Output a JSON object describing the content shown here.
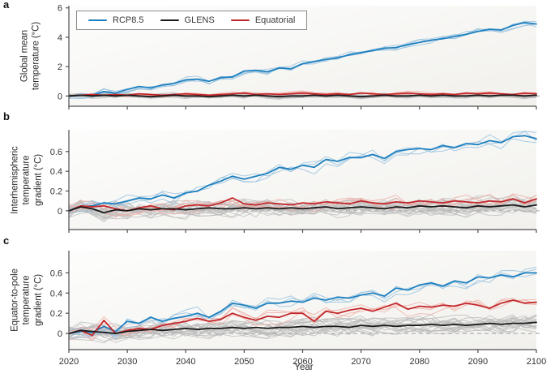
{
  "figure": {
    "xlabel": "Year",
    "legend": [
      {
        "label": "RCP8.5",
        "color": "#1e80c0"
      },
      {
        "label": "GLENS",
        "color": "#1a1a1a"
      },
      {
        "label": "Equatorial",
        "color": "#c4272b"
      }
    ],
    "panels": [
      {
        "letter": "a",
        "ylabel_lines": [
          "Global mean",
          "temperature (°C)"
        ]
      },
      {
        "letter": "b",
        "ylabel_lines": [
          "Interhemispheric",
          "temperature",
          "gradient (°C)"
        ]
      },
      {
        "letter": "c",
        "ylabel_lines": [
          "Equator-to-pole",
          "temperature",
          "gradient (°C)"
        ]
      }
    ],
    "colors": {
      "rcp85": "#1e80c0",
      "rcp85_ensemble": "#92bedd",
      "glens": "#1a1a1a",
      "glens_ensemble": "#bcbcbc",
      "equatorial": "#c4272b",
      "equatorial_ensemble": "#efa9a1",
      "axis": "#4d4d4d",
      "zero_dash": "#a0a0a0",
      "plot_bg_top": "#fdfdfc",
      "plot_bg_bottom": "#f1f0ec"
    }
  },
  "chart_data": [
    {
      "type": "line",
      "panel": "a",
      "ylabel": "Global mean temperature (°C)",
      "xlabel": "Year",
      "ylim": [
        -0.7,
        6.15
      ],
      "yticks": [
        0,
        2,
        4,
        6
      ],
      "xticks": [
        2020,
        2030,
        2040,
        2050,
        2060,
        2070,
        2080,
        2090,
        2100
      ],
      "x": [
        2020,
        2022,
        2024,
        2026,
        2028,
        2030,
        2032,
        2034,
        2036,
        2038,
        2040,
        2042,
        2044,
        2046,
        2048,
        2050,
        2052,
        2054,
        2056,
        2058,
        2060,
        2062,
        2064,
        2066,
        2068,
        2070,
        2072,
        2074,
        2076,
        2078,
        2080,
        2082,
        2084,
        2086,
        2088,
        2090,
        2092,
        2094,
        2096,
        2098,
        2100
      ],
      "series": [
        {
          "name": "RCP8.5",
          "color": "#1e80c0",
          "values": [
            0,
            0.05,
            0.05,
            0.3,
            0.2,
            0.45,
            0.65,
            0.55,
            0.75,
            0.85,
            1.1,
            1.15,
            1.0,
            1.25,
            1.3,
            1.7,
            1.75,
            1.65,
            1.9,
            1.85,
            2.2,
            2.35,
            2.5,
            2.6,
            2.8,
            2.95,
            3.1,
            3.25,
            3.3,
            3.5,
            3.65,
            3.8,
            3.9,
            4.05,
            4.2,
            4.4,
            4.55,
            4.5,
            4.8,
            5.0,
            4.9
          ]
        },
        {
          "name": "GLENS",
          "color": "#1a1a1a",
          "values": [
            0,
            0.05,
            0,
            0.05,
            0,
            0.05,
            0,
            -0.05,
            0,
            0.05,
            0,
            0,
            -0.05,
            0,
            0.05,
            0,
            0.05,
            0,
            -0.05,
            0,
            0,
            0.05,
            0,
            0.05,
            0,
            -0.05,
            0,
            0.05,
            0,
            0,
            0.05,
            0,
            0.05,
            0,
            0,
            0.05,
            0,
            0.05,
            0.05,
            0,
            0.05
          ]
        },
        {
          "name": "Equatorial",
          "color": "#c4272b",
          "values": [
            0,
            0.05,
            0.1,
            0.05,
            0.1,
            0.05,
            0.15,
            0.1,
            0.05,
            0.1,
            0.15,
            0.1,
            0.05,
            0.1,
            0.15,
            0.2,
            0.1,
            0.15,
            0.1,
            0.15,
            0.2,
            0.15,
            0.1,
            0.15,
            0.1,
            0.2,
            0.15,
            0.1,
            0.15,
            0.2,
            0.15,
            0.1,
            0.15,
            0.1,
            0.2,
            0.15,
            0.2,
            0.15,
            0.1,
            0.2,
            0.15
          ]
        }
      ],
      "ensemble": {
        "RCP8.5": {
          "members": 4,
          "spread": 0.18,
          "color": "#92bedd"
        },
        "GLENS": {
          "members": 20,
          "spread": 0.12,
          "color": "#bcbcbc"
        },
        "Equatorial": {
          "members": 4,
          "spread": 0.1,
          "color": "#efa9a1"
        }
      },
      "zero_line_dashed": true,
      "legend_position": "top-left"
    },
    {
      "type": "line",
      "panel": "b",
      "ylabel": "Interhemispheric temperature gradient (°C)",
      "xlabel": "Year",
      "ylim": [
        -0.19,
        0.82
      ],
      "yticks": [
        0,
        0.2,
        0.4,
        0.6
      ],
      "xticks": [
        2020,
        2030,
        2040,
        2050,
        2060,
        2070,
        2080,
        2090,
        2100
      ],
      "x": [
        2020,
        2022,
        2024,
        2026,
        2028,
        2030,
        2032,
        2034,
        2036,
        2038,
        2040,
        2042,
        2044,
        2046,
        2048,
        2050,
        2052,
        2054,
        2056,
        2058,
        2060,
        2062,
        2064,
        2066,
        2068,
        2070,
        2072,
        2074,
        2076,
        2078,
        2080,
        2082,
        2084,
        2086,
        2088,
        2090,
        2092,
        2094,
        2096,
        2098,
        2100
      ],
      "series": [
        {
          "name": "RCP8.5",
          "color": "#1e80c0",
          "values": [
            0,
            0.04,
            0.05,
            0.08,
            0.07,
            0.1,
            0.13,
            0.12,
            0.16,
            0.13,
            0.18,
            0.2,
            0.26,
            0.3,
            0.35,
            0.32,
            0.35,
            0.38,
            0.44,
            0.42,
            0.46,
            0.44,
            0.52,
            0.5,
            0.54,
            0.54,
            0.57,
            0.53,
            0.6,
            0.62,
            0.63,
            0.62,
            0.66,
            0.64,
            0.68,
            0.67,
            0.71,
            0.69,
            0.75,
            0.76,
            0.73
          ]
        },
        {
          "name": "GLENS",
          "color": "#1a1a1a",
          "values": [
            0,
            0.04,
            0.02,
            -0.02,
            0.01,
            0,
            0.02,
            0.01,
            0.02,
            0.02,
            0.01,
            0.02,
            0.03,
            0.02,
            0.02,
            0.03,
            0.02,
            0.03,
            0.02,
            0.03,
            0.02,
            0.03,
            0.04,
            0.02,
            0.03,
            0.04,
            0.03,
            0.02,
            0.04,
            0.03,
            0.05,
            0.04,
            0.05,
            0.04,
            0.03,
            0.05,
            0.04,
            0.05,
            0.06,
            0.04,
            0.06
          ]
        },
        {
          "name": "Equatorial",
          "color": "#c4272b",
          "values": [
            0,
            0.05,
            0.04,
            0.05,
            0.02,
            0,
            0.03,
            0.05,
            0.02,
            0.01,
            0.05,
            0.06,
            0.05,
            0.08,
            0.13,
            0.07,
            0.06,
            0.08,
            0.07,
            0.06,
            0.08,
            0.07,
            0.09,
            0.08,
            0.07,
            0.1,
            0.08,
            0.07,
            0.09,
            0.08,
            0.1,
            0.09,
            0.08,
            0.1,
            0.09,
            0.08,
            0.1,
            0.09,
            0.12,
            0.08,
            0.12
          ]
        }
      ],
      "ensemble": {
        "RCP8.5": {
          "members": 3,
          "spread": 0.05,
          "color": "#92bedd"
        },
        "GLENS": {
          "members": 20,
          "spread": 0.07,
          "color": "#bcbcbc"
        },
        "Equatorial": {
          "members": 3,
          "spread": 0.06,
          "color": "#efa9a1"
        }
      },
      "zero_line_dashed": true
    },
    {
      "type": "line",
      "panel": "c",
      "ylabel": "Equator-to-pole temperature gradient (°C)",
      "xlabel": "Year",
      "ylim": [
        -0.16,
        0.82
      ],
      "yticks": [
        0,
        0.2,
        0.4,
        0.6
      ],
      "xticks": [
        2020,
        2030,
        2040,
        2050,
        2060,
        2070,
        2080,
        2090,
        2100
      ],
      "x": [
        2020,
        2022,
        2024,
        2026,
        2028,
        2030,
        2032,
        2034,
        2036,
        2038,
        2040,
        2042,
        2044,
        2046,
        2048,
        2050,
        2052,
        2054,
        2056,
        2058,
        2060,
        2062,
        2064,
        2066,
        2068,
        2070,
        2072,
        2074,
        2076,
        2078,
        2080,
        2082,
        2084,
        2086,
        2088,
        2090,
        2092,
        2094,
        2096,
        2098,
        2100
      ],
      "series": [
        {
          "name": "RCP8.5",
          "color": "#1e80c0",
          "values": [
            0,
            0.02,
            0.01,
            0.07,
            0.02,
            0.12,
            0.1,
            0.16,
            0.12,
            0.15,
            0.17,
            0.2,
            0.16,
            0.22,
            0.3,
            0.28,
            0.25,
            0.3,
            0.3,
            0.32,
            0.31,
            0.35,
            0.33,
            0.36,
            0.35,
            0.38,
            0.4,
            0.37,
            0.45,
            0.43,
            0.48,
            0.5,
            0.47,
            0.52,
            0.5,
            0.56,
            0.55,
            0.58,
            0.56,
            0.6,
            0.6
          ]
        },
        {
          "name": "GLENS",
          "color": "#1a1a1a",
          "values": [
            0,
            0.03,
            0.02,
            0.01,
            0,
            0.02,
            0.03,
            0.04,
            0.03,
            0.04,
            0.05,
            0.04,
            0.05,
            0.05,
            0.06,
            0.05,
            0.06,
            0.05,
            0.06,
            0.06,
            0.07,
            0.06,
            0.07,
            0.07,
            0.06,
            0.08,
            0.07,
            0.08,
            0.07,
            0.08,
            0.08,
            0.09,
            0.08,
            0.09,
            0.08,
            0.09,
            0.1,
            0.09,
            0.1,
            0.1,
            0.11
          ]
        },
        {
          "name": "Equatorial",
          "color": "#c4272b",
          "values": [
            0,
            0.03,
            -0.02,
            0.13,
            0,
            0.03,
            0.05,
            0.04,
            0.08,
            0.1,
            0.12,
            0.15,
            0.12,
            0.14,
            0.2,
            0.16,
            0.13,
            0.17,
            0.16,
            0.2,
            0.2,
            0.12,
            0.22,
            0.2,
            0.23,
            0.25,
            0.22,
            0.26,
            0.3,
            0.24,
            0.27,
            0.26,
            0.28,
            0.27,
            0.3,
            0.28,
            0.25,
            0.3,
            0.33,
            0.3,
            0.31
          ]
        }
      ],
      "ensemble": {
        "RCP8.5": {
          "members": 3,
          "spread": 0.05,
          "color": "#92bedd"
        },
        "GLENS": {
          "members": 20,
          "spread": 0.07,
          "color": "#bcbcbc"
        },
        "Equatorial": {
          "members": 3,
          "spread": 0.06,
          "color": "#efa9a1"
        }
      },
      "zero_line_dashed": true
    }
  ]
}
